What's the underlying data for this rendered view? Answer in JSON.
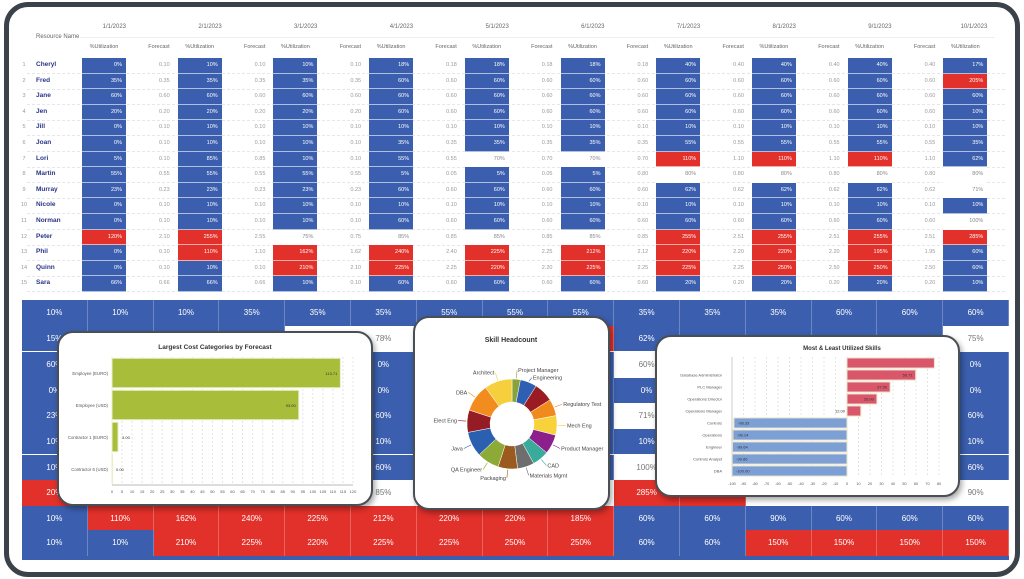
{
  "colors": {
    "blue": "#3b5fae",
    "red": "#e2302a",
    "white": "#ffffff",
    "navy": "#2a3585",
    "green": "#a8bd3a",
    "pink": "#d9566b",
    "lightblue": "#7c9fd6"
  },
  "table": {
    "resource_header": "Resource Name",
    "util_header": "%Utilization",
    "forecast_header": "Forecast",
    "months": [
      "1/1/2023",
      "2/1/2023",
      "3/1/2023",
      "4/1/2023",
      "5/1/2023",
      "6/1/2023",
      "7/1/2023",
      "8/1/2023",
      "9/1/2023",
      "10/1/2023"
    ],
    "rows": [
      {
        "num": "1",
        "name": "Cheryl",
        "util": [
          "0%",
          "10%",
          "10%",
          "18%",
          "18%",
          "18%",
          "40%",
          "40%",
          "40%",
          "17%"
        ],
        "status": [
          "blue",
          "blue",
          "blue",
          "blue",
          "blue",
          "blue",
          "blue",
          "blue",
          "blue",
          "blue"
        ],
        "forecast": [
          "0.10",
          "0.10",
          "0.10",
          "0.18",
          "0.18",
          "0.18",
          "0.40",
          "0.40",
          "0.40"
        ]
      },
      {
        "num": "2",
        "name": "Fred",
        "util": [
          "35%",
          "35%",
          "35%",
          "60%",
          "60%",
          "60%",
          "60%",
          "60%",
          "60%",
          "205%"
        ],
        "status": [
          "blue",
          "blue",
          "blue",
          "blue",
          "blue",
          "blue",
          "blue",
          "blue",
          "blue",
          "red"
        ],
        "forecast": [
          "0.35",
          "0.35",
          "0.35",
          "0.60",
          "0.60",
          "0.60",
          "0.60",
          "0.60",
          "0.60"
        ]
      },
      {
        "num": "3",
        "name": "Jane",
        "util": [
          "60%",
          "60%",
          "60%",
          "60%",
          "60%",
          "60%",
          "60%",
          "60%",
          "60%",
          "60%"
        ],
        "status": [
          "blue",
          "blue",
          "blue",
          "blue",
          "blue",
          "blue",
          "blue",
          "blue",
          "blue",
          "blue"
        ],
        "forecast": [
          "0.60",
          "0.60",
          "0.60",
          "0.60",
          "0.60",
          "0.60",
          "0.60",
          "0.60",
          "0.60"
        ]
      },
      {
        "num": "4",
        "name": "Jen",
        "util": [
          "20%",
          "20%",
          "20%",
          "60%",
          "60%",
          "60%",
          "60%",
          "60%",
          "60%",
          "10%"
        ],
        "status": [
          "blue",
          "blue",
          "blue",
          "blue",
          "blue",
          "blue",
          "blue",
          "blue",
          "blue",
          "blue"
        ],
        "forecast": [
          "0.20",
          "0.20",
          "0.20",
          "0.60",
          "0.60",
          "0.60",
          "0.60",
          "0.60",
          "0.60"
        ]
      },
      {
        "num": "5",
        "name": "Jill",
        "util": [
          "0%",
          "10%",
          "10%",
          "10%",
          "10%",
          "10%",
          "10%",
          "10%",
          "10%",
          "10%"
        ],
        "status": [
          "blue",
          "blue",
          "blue",
          "blue",
          "blue",
          "blue",
          "blue",
          "blue",
          "blue",
          "blue"
        ],
        "forecast": [
          "0.10",
          "0.10",
          "0.10",
          "0.10",
          "0.10",
          "0.10",
          "0.10",
          "0.10",
          "0.10"
        ]
      },
      {
        "num": "6",
        "name": "Joan",
        "util": [
          "0%",
          "10%",
          "10%",
          "35%",
          "35%",
          "35%",
          "55%",
          "55%",
          "55%",
          "35%"
        ],
        "status": [
          "blue",
          "blue",
          "blue",
          "blue",
          "blue",
          "blue",
          "blue",
          "blue",
          "blue",
          "blue"
        ],
        "forecast": [
          "0.10",
          "0.10",
          "0.10",
          "0.35",
          "0.35",
          "0.35",
          "0.55",
          "0.55",
          "0.55"
        ]
      },
      {
        "num": "7",
        "name": "Lori",
        "util": [
          "5%",
          "85%",
          "10%",
          "55%",
          "70%",
          "70%",
          "110%",
          "110%",
          "110%",
          "62%"
        ],
        "status": [
          "blue",
          "blue",
          "blue",
          "blue",
          "white",
          "white",
          "red",
          "red",
          "red",
          "blue"
        ],
        "forecast": [
          "0.10",
          "0.85",
          "0.10",
          "0.55",
          "0.70",
          "0.70",
          "1.10",
          "1.10",
          "1.10"
        ]
      },
      {
        "num": "8",
        "name": "Martin",
        "util": [
          "55%",
          "55%",
          "55%",
          "5%",
          "5%",
          "5%",
          "80%",
          "80%",
          "80%",
          "80%"
        ],
        "status": [
          "blue",
          "blue",
          "blue",
          "blue",
          "blue",
          "blue",
          "white",
          "white",
          "white",
          "white"
        ],
        "forecast": [
          "0.55",
          "0.55",
          "0.55",
          "0.05",
          "0.05",
          "0.80",
          "0.80",
          "0.80",
          "0.80"
        ]
      },
      {
        "num": "9",
        "name": "Murray",
        "util": [
          "23%",
          "23%",
          "23%",
          "60%",
          "60%",
          "60%",
          "62%",
          "62%",
          "62%",
          "71%"
        ],
        "status": [
          "blue",
          "blue",
          "blue",
          "blue",
          "blue",
          "blue",
          "blue",
          "blue",
          "blue",
          "white"
        ],
        "forecast": [
          "0.23",
          "0.23",
          "0.23",
          "0.60",
          "0.60",
          "0.60",
          "0.62",
          "0.62",
          "0.62"
        ]
      },
      {
        "num": "10",
        "name": "Nicole",
        "util": [
          "0%",
          "10%",
          "10%",
          "10%",
          "10%",
          "10%",
          "10%",
          "10%",
          "10%",
          "10%"
        ],
        "status": [
          "blue",
          "blue",
          "blue",
          "blue",
          "blue",
          "blue",
          "blue",
          "blue",
          "blue",
          "blue"
        ],
        "forecast": [
          "0.10",
          "0.10",
          "0.10",
          "0.10",
          "0.10",
          "0.10",
          "0.10",
          "0.10",
          "0.10"
        ]
      },
      {
        "num": "11",
        "name": "Norman",
        "util": [
          "0%",
          "10%",
          "10%",
          "60%",
          "60%",
          "60%",
          "60%",
          "60%",
          "60%",
          "100%"
        ],
        "status": [
          "blue",
          "blue",
          "blue",
          "blue",
          "blue",
          "blue",
          "blue",
          "blue",
          "blue",
          "white"
        ],
        "forecast": [
          "0.10",
          "0.10",
          "0.10",
          "0.60",
          "0.60",
          "0.60",
          "0.60",
          "0.60",
          "0.60"
        ]
      },
      {
        "num": "12",
        "name": "Peter",
        "util": [
          "120%",
          "255%",
          "75%",
          "85%",
          "85%",
          "85%",
          "255%",
          "255%",
          "255%",
          "285%"
        ],
        "status": [
          "red",
          "red",
          "white",
          "white",
          "white",
          "white",
          "red",
          "red",
          "red",
          "red"
        ],
        "forecast": [
          "2.10",
          "2.55",
          "0.75",
          "0.85",
          "0.85",
          "0.85",
          "2.51",
          "2.51",
          "2.51"
        ]
      },
      {
        "num": "13",
        "name": "Phil",
        "util": [
          "0%",
          "110%",
          "162%",
          "240%",
          "225%",
          "212%",
          "220%",
          "220%",
          "195%",
          "60%"
        ],
        "status": [
          "blue",
          "red",
          "red",
          "red",
          "red",
          "red",
          "red",
          "red",
          "red",
          "blue"
        ],
        "forecast": [
          "0.10",
          "1.10",
          "1.62",
          "2.40",
          "2.25",
          "2.12",
          "2.20",
          "2.20",
          "1.95"
        ]
      },
      {
        "num": "14",
        "name": "Quinn",
        "util": [
          "0%",
          "10%",
          "210%",
          "225%",
          "220%",
          "225%",
          "225%",
          "250%",
          "250%",
          "60%"
        ],
        "status": [
          "blue",
          "blue",
          "red",
          "red",
          "red",
          "red",
          "red",
          "red",
          "red",
          "blue"
        ],
        "forecast": [
          "0.10",
          "0.10",
          "2.10",
          "2.25",
          "2.20",
          "2.25",
          "2.25",
          "2.50",
          "2.50"
        ]
      },
      {
        "num": "15",
        "name": "Sara",
        "util": [
          "66%",
          "66%",
          "10%",
          "60%",
          "60%",
          "60%",
          "20%",
          "20%",
          "20%",
          "10%"
        ],
        "status": [
          "blue",
          "blue",
          "blue",
          "blue",
          "blue",
          "blue",
          "blue",
          "blue",
          "blue",
          "blue"
        ],
        "forecast": [
          "0.66",
          "0.66",
          "0.10",
          "0.60",
          "0.60",
          "0.60",
          "0.20",
          "0.20",
          "0.20"
        ]
      }
    ]
  },
  "background_grid": [
    {
      "text": [
        "10%",
        "10%",
        "10%",
        "35%",
        "35%",
        "35%",
        "55%",
        "55%",
        "55%",
        "35%",
        "35%",
        "35%",
        "60%",
        "60%",
        "60%"
      ],
      "status": [
        "blue",
        "blue",
        "blue",
        "blue",
        "blue",
        "blue",
        "blue",
        "blue",
        "blue",
        "blue",
        "blue",
        "blue",
        "blue",
        "blue",
        "blue"
      ]
    },
    {
      "text": [
        "15%",
        "",
        "",
        "",
        "",
        "78%",
        "",
        "",
        "",
        "62%",
        "",
        "",
        "",
        "",
        "75%"
      ],
      "status": [
        "blue",
        "blue",
        "blue",
        "blue",
        "white",
        "white",
        "white",
        "white",
        "red",
        "blue",
        "blue",
        "blue",
        "blue",
        "blue",
        "white"
      ]
    },
    {
      "text": [
        "60%",
        "",
        "",
        "",
        "",
        "0%",
        "",
        "",
        "",
        "60%",
        "",
        "",
        "",
        "",
        "0%"
      ],
      "status": [
        "blue",
        "blue",
        "blue",
        "blue",
        "blue",
        "blue",
        "blue",
        "blue",
        "blue",
        "white",
        "blue",
        "blue",
        "blue",
        "blue",
        "blue"
      ]
    },
    {
      "text": [
        "0%",
        "",
        "",
        "",
        "",
        "0%",
        "",
        "",
        "",
        "0%",
        "",
        "",
        "",
        "",
        "0%"
      ],
      "status": [
        "blue",
        "blue",
        "blue",
        "blue",
        "blue",
        "blue",
        "blue",
        "blue",
        "blue",
        "blue",
        "blue",
        "blue",
        "blue",
        "blue",
        "blue"
      ]
    },
    {
      "text": [
        "23%",
        "",
        "",
        "",
        "",
        "60%",
        "",
        "",
        "",
        "71%",
        "",
        "",
        "",
        "",
        "60%"
      ],
      "status": [
        "blue",
        "blue",
        "blue",
        "blue",
        "blue",
        "blue",
        "blue",
        "blue",
        "blue",
        "white",
        "blue",
        "blue",
        "blue",
        "blue",
        "blue"
      ]
    },
    {
      "text": [
        "10%",
        "",
        "",
        "",
        "",
        "10%",
        "",
        "",
        "",
        "10%",
        "",
        "",
        "",
        "",
        "10%"
      ],
      "status": [
        "blue",
        "blue",
        "blue",
        "blue",
        "blue",
        "blue",
        "blue",
        "blue",
        "blue",
        "blue",
        "blue",
        "blue",
        "blue",
        "blue",
        "blue"
      ]
    },
    {
      "text": [
        "10%",
        "",
        "",
        "",
        "",
        "60%",
        "",
        "",
        "",
        "100%",
        "",
        "",
        "",
        "",
        "60%"
      ],
      "status": [
        "blue",
        "blue",
        "blue",
        "blue",
        "blue",
        "blue",
        "blue",
        "blue",
        "blue",
        "white",
        "blue",
        "blue",
        "blue",
        "blue",
        "blue"
      ]
    },
    {
      "text": [
        "20%",
        "",
        "",
        "",
        "",
        "85%",
        "",
        "",
        "",
        "285%",
        "",
        "",
        "",
        "",
        "90%"
      ],
      "status": [
        "red",
        "red",
        "white",
        "white",
        "white",
        "white",
        "white",
        "white",
        "white",
        "red",
        "red",
        "white",
        "white",
        "white",
        "white"
      ]
    },
    {
      "text": [
        "10%",
        "110%",
        "162%",
        "240%",
        "225%",
        "212%",
        "220%",
        "220%",
        "185%",
        "60%",
        "60%",
        "90%",
        "60%",
        "60%",
        "60%"
      ],
      "status": [
        "blue",
        "red",
        "red",
        "red",
        "red",
        "red",
        "red",
        "red",
        "red",
        "blue",
        "blue",
        "blue",
        "blue",
        "blue",
        "blue"
      ]
    },
    {
      "text": [
        "10%",
        "10%",
        "210%",
        "225%",
        "220%",
        "225%",
        "225%",
        "250%",
        "250%",
        "60%",
        "60%",
        "150%",
        "150%",
        "150%",
        "150%"
      ],
      "status": [
        "blue",
        "blue",
        "red",
        "red",
        "red",
        "red",
        "red",
        "red",
        "red",
        "blue",
        "blue",
        "red",
        "red",
        "red",
        "red"
      ]
    }
  ],
  "chart_data": [
    {
      "type": "bar",
      "orientation": "horizontal",
      "title": "Largest Cost Categories by Forecast",
      "categories": [
        "Employee (EURO)",
        "Employee (USD)",
        "Contractor 1 (EURO)",
        "Contractor 6 (USD)"
      ],
      "values": [
        113.71,
        93.0,
        3.0,
        0.0
      ],
      "value_labels": [
        "113.71",
        "93.00",
        "3.00",
        "0.00"
      ],
      "xlim": [
        0,
        120
      ],
      "xticks": [
        "0",
        "5",
        "10",
        "15",
        "20",
        "25",
        "30",
        "35",
        "40",
        "45",
        "50",
        "55",
        "60",
        "65",
        "70",
        "75",
        "80",
        "85",
        "90",
        "95",
        "100",
        "105",
        "110",
        "115",
        "120"
      ],
      "grid": true,
      "color": "#a8bd3a"
    },
    {
      "type": "pie",
      "variant": "donut",
      "title": "Skill Headcount",
      "slices": [
        {
          "label": "Project Manager",
          "value": 3,
          "color": "#8aa23a"
        },
        {
          "label": "Engineering",
          "value": 6,
          "color": "#2f5fb3"
        },
        {
          "label": "",
          "value": 7,
          "color": "#9b1b22"
        },
        {
          "label": "Regulatory Test",
          "value": 6,
          "color": "#f08a1c"
        },
        {
          "label": "Mech Eng",
          "value": 7,
          "color": "#f7d23a"
        },
        {
          "label": "Product Manager",
          "value": 7,
          "color": "#8c1f8c"
        },
        {
          "label": "CAD",
          "value": 6,
          "color": "#3aab9b"
        },
        {
          "label": "Materials Mgmt",
          "value": 6,
          "color": "#6e6e6e"
        },
        {
          "label": "Packaging",
          "value": 7,
          "color": "#9c5b1e"
        },
        {
          "label": "QA Engineer",
          "value": 8,
          "color": "#8eaa36"
        },
        {
          "label": "Java",
          "value": 9,
          "color": "#2b5fb0"
        },
        {
          "label": "Elect Eng",
          "value": 8,
          "color": "#951b24"
        },
        {
          "label": "DBA",
          "value": 10,
          "color": "#f28c1e"
        },
        {
          "label": "Architect",
          "value": 10,
          "color": "#f6cf3c"
        }
      ],
      "legend": "none"
    },
    {
      "type": "bar",
      "orientation": "horizontal",
      "title": "Most & Least Utilized Skills",
      "categories": [
        "",
        "Database Administrator",
        "PLC Manager",
        "Operations Director",
        "Operations Manager",
        "Controls",
        "Operations",
        "Engineer",
        "Controls Analyst",
        "DBA"
      ],
      "values": [
        76.0,
        59.71,
        37.5,
        26.0,
        12.0,
        -98.33,
        -99.14,
        -99.64,
        -99.86,
        -100.0
      ],
      "value_labels": [
        "",
        "59.71",
        "37.50",
        "26.00",
        "12.00",
        "-98.33",
        "-99.14",
        "-99.64",
        "-99.86",
        "-100.00"
      ],
      "xlim": [
        -100,
        80
      ],
      "xticks": [
        "-100",
        "-90",
        "-80",
        "-70",
        "-60",
        "-50",
        "-40",
        "-30",
        "-20",
        "-10",
        "0",
        "10",
        "20",
        "30",
        "40",
        "50",
        "60",
        "70",
        "80"
      ],
      "grid": true,
      "positive_color": "#d9566b",
      "negative_color": "#7c9fd6"
    }
  ]
}
